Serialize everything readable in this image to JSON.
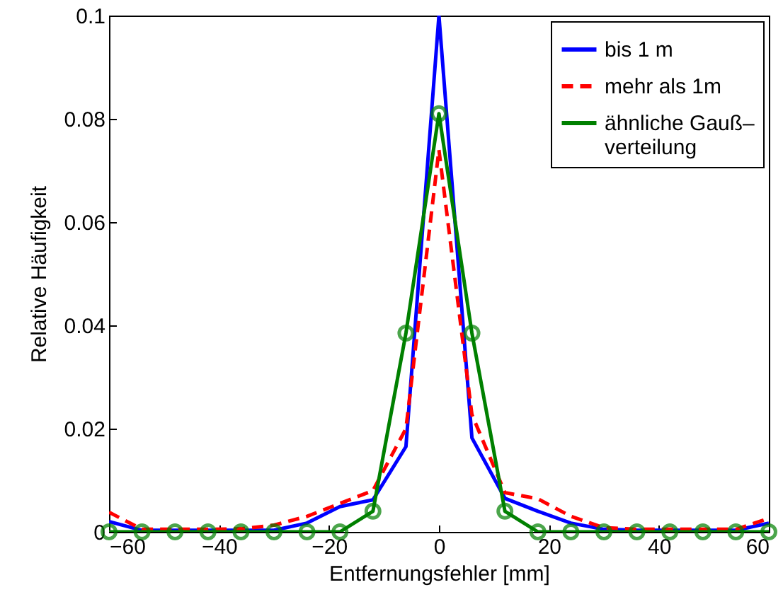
{
  "chart_data": {
    "type": "line",
    "xlabel": "Entfernungsfehler [mm]",
    "ylabel": "Relative Häufigkeit",
    "x": [
      -60,
      -54,
      -48,
      -42,
      -36,
      -30,
      -24,
      -18,
      -12,
      -6,
      0,
      6,
      12,
      18,
      24,
      30,
      36,
      42,
      48,
      54,
      60
    ],
    "xlim": [
      -60,
      60
    ],
    "xticks": [
      -60,
      -40,
      -20,
      0,
      20,
      40,
      60
    ],
    "ylim": [
      0,
      0.1
    ],
    "yticks": [
      0,
      0.02,
      0.04,
      0.06,
      0.08,
      0.1
    ],
    "grid": false,
    "legend": "top right",
    "series": [
      {
        "name": "bis 1 m",
        "color": "#0000ff",
        "line_style": "solid",
        "marker": "none",
        "values": [
          0.002,
          0.0003,
          0.0003,
          0.0003,
          0.0003,
          0.0003,
          0.0017,
          0.0049,
          0.0062,
          0.0165,
          0.1,
          0.0182,
          0.0065,
          0.004,
          0.0017,
          0.0005,
          0.0003,
          0.0003,
          0.0003,
          0.0003,
          0.0017
        ]
      },
      {
        "name": "mehr als 1m",
        "color": "#ff0000",
        "line_style": "dashed",
        "marker": "none",
        "values": [
          0.0038,
          0.0005,
          0.0005,
          0.0005,
          0.0006,
          0.0013,
          0.003,
          0.0055,
          0.008,
          0.02,
          0.074,
          0.0227,
          0.0076,
          0.0064,
          0.003,
          0.0008,
          0.0005,
          0.0005,
          0.0005,
          0.0005,
          0.0026
        ]
      },
      {
        "name": "ähnliche Gauß–\nverteilung",
        "color": "#008000",
        "line_style": "solid",
        "marker": "circle",
        "values": [
          0,
          0,
          0,
          0,
          0,
          0,
          0,
          0,
          0.004,
          0.0385,
          0.081,
          0.0385,
          0.004,
          0,
          0,
          0,
          0,
          0,
          0,
          0,
          0
        ]
      }
    ]
  }
}
